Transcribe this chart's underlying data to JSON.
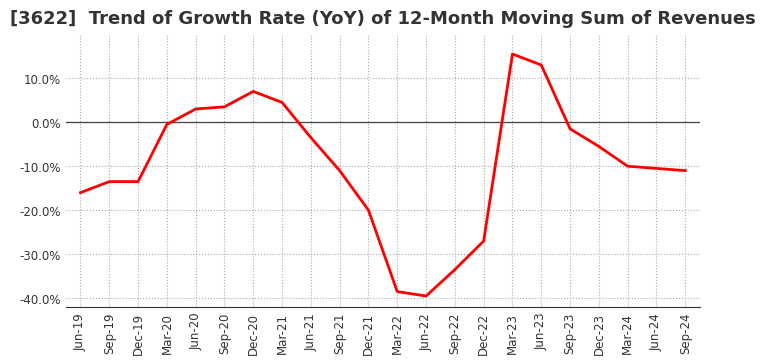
{
  "title": "[3622]  Trend of Growth Rate (YoY) of 12-Month Moving Sum of Revenues",
  "x_labels": [
    "Jun-19",
    "Sep-19",
    "Dec-19",
    "Mar-20",
    "Jun-20",
    "Sep-20",
    "Dec-20",
    "Mar-21",
    "Jun-21",
    "Sep-21",
    "Dec-21",
    "Mar-22",
    "Jun-22",
    "Sep-22",
    "Dec-22",
    "Mar-23",
    "Jun-23",
    "Sep-23",
    "Dec-23",
    "Mar-24",
    "Jun-24",
    "Sep-24"
  ],
  "y_values": [
    -16.0,
    -13.5,
    -13.5,
    -0.5,
    3.0,
    3.5,
    7.0,
    4.5,
    -3.5,
    -11.0,
    -20.0,
    -38.5,
    -39.5,
    -33.5,
    -27.0,
    15.5,
    13.0,
    -1.5,
    -5.5,
    -10.0,
    -10.5,
    -11.0
  ],
  "line_color": "#FF0000",
  "line_width": 2.0,
  "ylim": [
    -42.0,
    20.0
  ],
  "yticks": [
    -40.0,
    -30.0,
    -20.0,
    -10.0,
    0.0,
    10.0
  ],
  "ytick_labels": [
    "-40.0%",
    "-30.0%",
    "-20.0%",
    "-10.0%",
    "0.0%",
    "10.0%"
  ],
  "background_color": "#FFFFFF",
  "grid_color": "#AAAAAA",
  "title_fontsize": 13,
  "tick_fontsize": 8.5,
  "zero_line_color": "#444444",
  "title_color": "#333333"
}
